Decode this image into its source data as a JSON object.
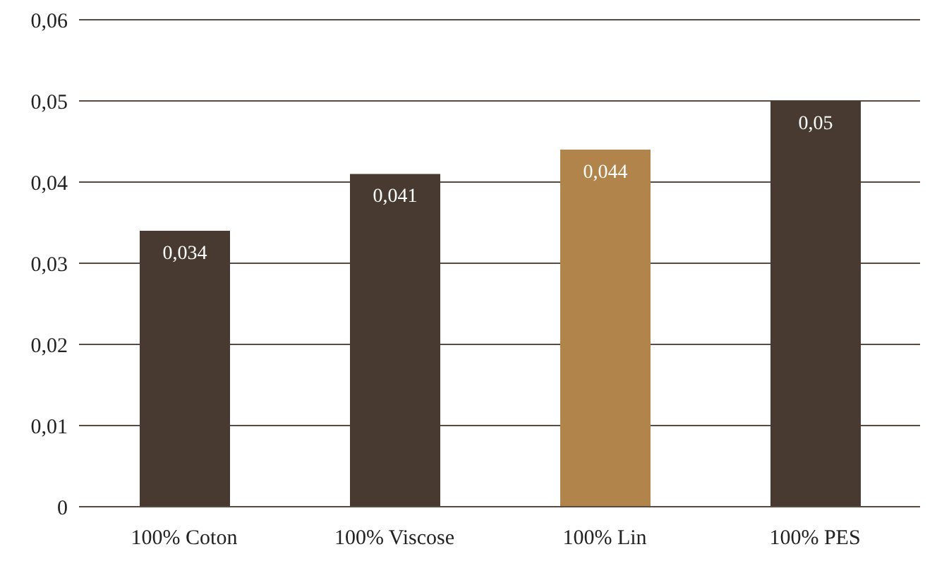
{
  "chart_data": {
    "type": "bar",
    "categories": [
      "100% Coton",
      "100% Viscose",
      "100% Lin",
      "100% PES"
    ],
    "values": [
      0.034,
      0.041,
      0.044,
      0.05
    ],
    "colors": [
      "#483a31",
      "#483a31",
      "#b0844b",
      "#483a31"
    ],
    "value_labels": [
      "0,034",
      "0,041",
      "0,044",
      "0,05"
    ],
    "ylim": [
      0,
      0.06
    ],
    "yticks": [
      {
        "value": 0,
        "label": "0"
      },
      {
        "value": 0.01,
        "label": "0,01"
      },
      {
        "value": 0.02,
        "label": "0,02"
      },
      {
        "value": 0.03,
        "label": "0,03"
      },
      {
        "value": 0.04,
        "label": "0,04"
      },
      {
        "value": 0.05,
        "label": "0,05"
      },
      {
        "value": 0.06,
        "label": "0,06"
      }
    ],
    "grid": "y"
  }
}
